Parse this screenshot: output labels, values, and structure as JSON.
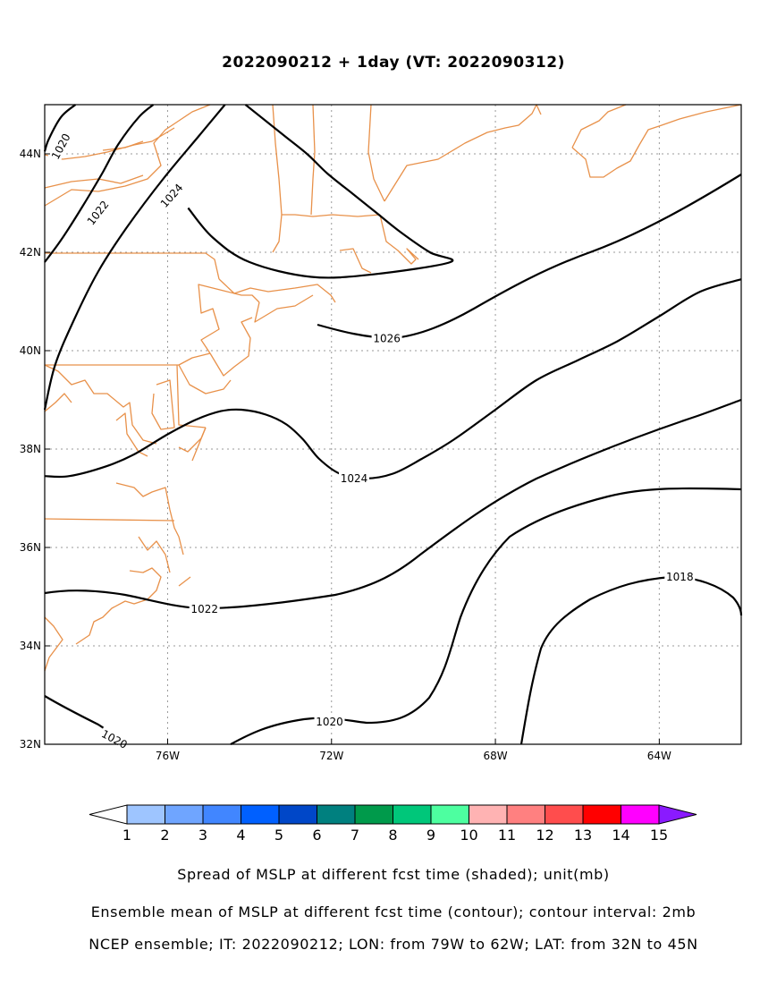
{
  "title": "2022090212 + 1day (VT: 2022090312)",
  "axes": {
    "lon_ticks": [
      {
        "value": -76,
        "label": "76W"
      },
      {
        "value": -72,
        "label": "72W"
      },
      {
        "value": -68,
        "label": "68W"
      },
      {
        "value": -64,
        "label": "64W"
      }
    ],
    "lat_ticks": [
      {
        "value": 32,
        "label": "32N"
      },
      {
        "value": 34,
        "label": "34N"
      },
      {
        "value": 36,
        "label": "36N"
      },
      {
        "value": 38,
        "label": "38N"
      },
      {
        "value": 40,
        "label": "40N"
      },
      {
        "value": 42,
        "label": "42N"
      },
      {
        "value": 44,
        "label": "44N"
      }
    ],
    "lon_range": [
      -79,
      -62
    ],
    "lat_range": [
      32,
      45
    ]
  },
  "colors": {
    "coastline": "#e8914a",
    "contour": "#000000",
    "grid": "#999999"
  },
  "colorbar": {
    "labels": [
      "1",
      "2",
      "3",
      "4",
      "5",
      "6",
      "7",
      "8",
      "9",
      "10",
      "11",
      "12",
      "13",
      "14",
      "15"
    ],
    "colors": [
      "#9ec5ff",
      "#6fa5ff",
      "#4186ff",
      "#0060ff",
      "#0047c8",
      "#00807f",
      "#009a4b",
      "#00c77a",
      "#4dffa0",
      "#ffb3b3",
      "#ff8080",
      "#ff4d4d",
      "#ff0000",
      "#ff00ff",
      "#8a1aff"
    ],
    "under_color": "#ffffff"
  },
  "contours": [
    {
      "label": "1020",
      "points": [
        [
          -79,
          44.05
        ],
        [
          -78.9,
          44.3
        ],
        [
          -78.6,
          44.75
        ],
        [
          -78.25,
          45
        ]
      ]
    },
    {
      "label": "1022",
      "points": [
        [
          -79,
          41.8
        ],
        [
          -78.6,
          42.25
        ],
        [
          -78.1,
          42.9
        ],
        [
          -77.6,
          43.6
        ],
        [
          -77.2,
          44.2
        ],
        [
          -76.7,
          44.75
        ],
        [
          -76.35,
          45
        ]
      ]
    },
    {
      "label": "1024",
      "points": [
        [
          -79,
          38.8
        ],
        [
          -78.75,
          39.7
        ],
        [
          -78.3,
          40.6
        ],
        [
          -77.7,
          41.6
        ],
        [
          -77.0,
          42.5
        ],
        [
          -76.1,
          43.5
        ],
        [
          -75.2,
          44.4
        ],
        [
          -74.6,
          45
        ]
      ]
    },
    {
      "label": "1026",
      "points": [
        [
          -74.1,
          45
        ],
        [
          -73.2,
          44.4
        ],
        [
          -72.6,
          44.0
        ],
        [
          -72.1,
          43.6
        ],
        [
          -71.5,
          43.2
        ],
        [
          -70.9,
          42.8
        ],
        [
          -70.3,
          42.4
        ],
        [
          -69.6,
          42.0
        ],
        [
          -69.1,
          41.8
        ],
        [
          -71.0,
          41.55
        ],
        [
          -72.5,
          41.5
        ],
        [
          -74.0,
          41.8
        ],
        [
          -74.9,
          42.3
        ],
        [
          -75.5,
          42.9
        ]
      ]
    },
    {
      "label": "1024",
      "points": [
        [
          -79,
          37.45
        ],
        [
          -78.4,
          37.45
        ],
        [
          -77.5,
          37.65
        ],
        [
          -76.8,
          37.9
        ],
        [
          -76.0,
          38.3
        ],
        [
          -75.3,
          38.6
        ],
        [
          -74.7,
          38.77
        ],
        [
          -74.2,
          38.8
        ],
        [
          -73.6,
          38.7
        ],
        [
          -73.1,
          38.5
        ],
        [
          -72.7,
          38.2
        ],
        [
          -72.3,
          37.8
        ],
        [
          -71.8,
          37.5
        ],
        [
          -71.2,
          37.4
        ],
        [
          -70.5,
          37.5
        ],
        [
          -69.8,
          37.8
        ],
        [
          -69.0,
          38.2
        ],
        [
          -68.0,
          38.8
        ],
        [
          -67.0,
          39.4
        ],
        [
          -66.0,
          39.8
        ],
        [
          -65.0,
          40.2
        ],
        [
          -64.0,
          40.7
        ],
        [
          -63.0,
          41.2
        ],
        [
          -62.0,
          41.45
        ]
      ]
    }
  ],
  "contour_labels": [
    {
      "text": "1020",
      "lon": -78.6,
      "lat": 44.15,
      "rot": -62
    },
    {
      "text": "1022",
      "lon": -77.7,
      "lat": 42.8,
      "rot": -52
    },
    {
      "text": "1024",
      "lon": -75.9,
      "lat": 43.15,
      "rot": -48
    },
    {
      "text": "1026",
      "lon": -70.65,
      "lat": 40.25,
      "rot": 0
    },
    {
      "text": "1024",
      "lon": -71.45,
      "lat": 37.4,
      "rot": 0
    },
    {
      "text": "1022",
      "lon": -75.1,
      "lat": 34.75,
      "rot": 0
    },
    {
      "text": "1020",
      "lon": -72.05,
      "lat": 32.45,
      "rot": 0
    },
    {
      "text": "1018",
      "lon": -63.5,
      "lat": 35.4,
      "rot": 0
    },
    {
      "text": "1020",
      "lon": -77.3,
      "lat": 32.1,
      "rot": 28
    }
  ],
  "captions": [
    "Spread of MSLP at different fcst time (shaded); unit(mb)",
    "Ensemble mean of MSLP at different fcst time (contour); contour interval: 2mb",
    "NCEP ensemble; IT: 2022090212; LON: from 79W to 62W; LAT: from 32N to 45N"
  ]
}
